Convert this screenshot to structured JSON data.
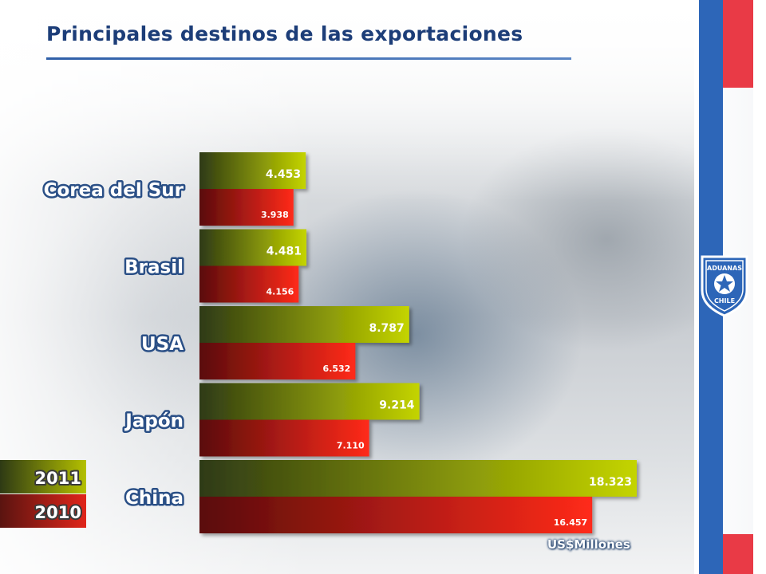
{
  "title": "Principales destinos de las exportaciones",
  "unit": "US$Millones",
  "colors": {
    "series_2011": "#c4d400",
    "series_2011_dark": "#2e3a14",
    "series_2010": "#ff2a1a",
    "series_2010_dark": "#5a0c0c",
    "title": "#1c3d78",
    "flag_blue": "#2d66b8",
    "flag_red": "#e93a46"
  },
  "logo": {
    "line1": "ADUANAS",
    "line2": "CHILE",
    "icon": "star-shield-icon"
  },
  "chart_data": {
    "type": "bar",
    "orientation": "horizontal",
    "categories": [
      "Corea del Sur",
      "Brasil",
      "USA",
      "Japón",
      "China"
    ],
    "series": [
      {
        "name": "2011",
        "values": [
          4453,
          4481,
          8787,
          9214,
          18323
        ],
        "labels": [
          "4.453",
          "4.481",
          "8.787",
          "9.214",
          "18.323"
        ]
      },
      {
        "name": "2010",
        "values": [
          3938,
          4156,
          6532,
          7110,
          16457
        ],
        "labels": [
          "3.938",
          "4.156",
          "6.532",
          "7.110",
          "16.457"
        ]
      }
    ],
    "xlabel": "US$Millones",
    "legend_position": "bottom-left"
  }
}
